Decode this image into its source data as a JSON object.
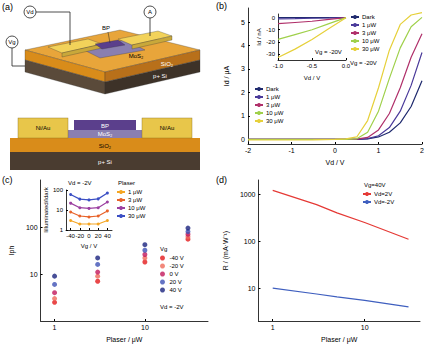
{
  "diagram": {
    "panel_label": "(a)",
    "device_3d": {
      "drain_source": "Vd",
      "ammeter": "A",
      "gate_source": "Vg",
      "top_flake": "BP",
      "bottom_flake": "MoS₂",
      "oxide": "SiO₂",
      "substrate": "p+ Si"
    },
    "cross_section": {
      "top_flake": "BP",
      "left_contact": "Ni/Au",
      "right_contact": "Ni/Au",
      "bottom_flake": "MoS₂",
      "oxide": "SiO₂",
      "substrate": "p+ Si"
    }
  },
  "chart_data": [
    {
      "type": "line",
      "title": "(b)",
      "x_label": "Vd / V",
      "y_label": "Id / μA",
      "annotations": [
        "Vg = -20V"
      ],
      "x": [
        -2,
        -1.5,
        -1,
        -0.5,
        0,
        0.25,
        0.5,
        0.75,
        1,
        1.25,
        1.5,
        1.75,
        2
      ],
      "xlim": [
        -2,
        2
      ],
      "xticks": [
        -2,
        -1,
        0,
        1,
        2
      ],
      "ylim": [
        -0.2,
        5.6
      ],
      "yticks": [
        0,
        1,
        2,
        3,
        4,
        5
      ],
      "grid": false,
      "legend": "left",
      "line_style": "solid",
      "series": [
        {
          "name": "Dark",
          "color": "#1f2a6e",
          "values": [
            0,
            0,
            0,
            0,
            0,
            0,
            0,
            0.02,
            0.1,
            0.3,
            0.7,
            1.4,
            2.5
          ]
        },
        {
          "name": "1 μW",
          "color": "#4a3a9a",
          "values": [
            0,
            0,
            0,
            0,
            0,
            0,
            0,
            0.03,
            0.15,
            0.5,
            1.2,
            2.3,
            3.7
          ]
        },
        {
          "name": "3 μW",
          "color": "#b0306a",
          "values": [
            0,
            0,
            0,
            0,
            0,
            0,
            0.01,
            0.08,
            0.4,
            1.1,
            2.2,
            3.5,
            4.5
          ]
        },
        {
          "name": "10 μW",
          "color": "#9fd04a",
          "values": [
            0,
            0,
            0,
            0,
            0,
            0,
            0.02,
            0.3,
            1.2,
            2.6,
            3.9,
            4.8,
            5.2
          ]
        },
        {
          "name": "30 μW",
          "color": "#e6d03a",
          "values": [
            -0.03,
            -0.03,
            -0.03,
            -0.02,
            0,
            0.02,
            0.1,
            0.8,
            2.2,
            3.8,
            4.9,
            5.3,
            5.4
          ]
        }
      ]
    },
    {
      "type": "line",
      "x_label": "Vd / V",
      "y_label": "Id / nA",
      "annotations": [
        "Vg = -20V"
      ],
      "x": [
        -1,
        -0.75,
        -0.5,
        -0.25,
        0
      ],
      "xlim": [
        -1,
        0
      ],
      "xticks": [
        {
          "value": -1,
          "label": "-1.0"
        },
        {
          "value": -0.5,
          "label": "-0.5"
        },
        {
          "value": 0,
          "label": "0.0"
        }
      ],
      "ylim": [
        -35,
        3
      ],
      "yticks": [
        -30,
        -20,
        -10,
        0
      ],
      "grid": false,
      "legend": "right",
      "line_style": "solid",
      "series": [
        {
          "name": "Dark",
          "color": "#1f2a6e",
          "values": [
            0,
            0,
            0,
            0,
            0
          ]
        },
        {
          "name": "1 μW",
          "color": "#4a3a9a",
          "values": [
            -1,
            -0.8,
            -0.5,
            -0.3,
            0
          ]
        },
        {
          "name": "3 μW",
          "color": "#b0306a",
          "values": [
            -5,
            -4,
            -3,
            -1.5,
            0
          ]
        },
        {
          "name": "10 μW",
          "color": "#9fd04a",
          "values": [
            -18,
            -14,
            -10,
            -5,
            0
          ]
        },
        {
          "name": "30 μW",
          "color": "#e6d03a",
          "values": [
            -33,
            -26,
            -18,
            -9,
            0
          ]
        }
      ]
    },
    {
      "type": "scatter",
      "title": "(c)",
      "x_label": "Plaser / μW",
      "y_label": "Iph",
      "annotations": [
        "Vd = -2V"
      ],
      "legend_title": "Vg",
      "x": [
        1,
        3,
        10,
        30
      ],
      "xlim": [
        0.7,
        50
      ],
      "xticks": [
        1,
        10
      ],
      "ylim": [
        1,
        1000
      ],
      "yticks": [
        10,
        100
      ],
      "log": true,
      "grid": false,
      "legend": "right",
      "marker": "circle",
      "series": [
        {
          "name": "-40 V",
          "color": "#e41a1c",
          "values": [
            2.5,
            7,
            18,
            55
          ]
        },
        {
          "name": "-20 V",
          "color": "#ef6a5a",
          "values": [
            3,
            9,
            22,
            62
          ]
        },
        {
          "name": "0 V",
          "color": "#c2185b",
          "values": [
            4,
            11,
            26,
            70
          ]
        },
        {
          "name": "20 V",
          "color": "#3f51b5",
          "values": [
            6,
            16,
            32,
            80
          ]
        },
        {
          "name": "40 V",
          "color": "#1a237e",
          "values": [
            9,
            22,
            42,
            95
          ]
        }
      ]
    },
    {
      "type": "line",
      "x_label": "Vg / V",
      "y_label": "Iilluminated/Idark",
      "annotations": [
        "Vd = -2V"
      ],
      "legend_title": "Plaser",
      "x": [
        -40,
        -20,
        0,
        20,
        40
      ],
      "xlim": [
        -50,
        50
      ],
      "xticks": [
        -40,
        -20,
        0,
        20,
        40
      ],
      "ylim": [
        1,
        100
      ],
      "yticks": [
        1,
        10,
        100
      ],
      "log": "y",
      "grid": false,
      "legend": "right",
      "marker": "circle",
      "line_style": "solid",
      "series": [
        {
          "name": "1 μW",
          "color": "#f5a623",
          "values": [
            3,
            2,
            2,
            2,
            3
          ]
        },
        {
          "name": "3 μW",
          "color": "#e8632a",
          "values": [
            8,
            5,
            4.5,
            5,
            9
          ]
        },
        {
          "name": "10 μW",
          "color": "#9b3fa0",
          "values": [
            22,
            13,
            12,
            13,
            25
          ]
        },
        {
          "name": "30 μW",
          "color": "#3b4fc4",
          "values": [
            60,
            35,
            32,
            36,
            70
          ]
        }
      ]
    },
    {
      "type": "line",
      "title": "(d)",
      "x_label": "Plaser / μW",
      "y_label": "R / (mA·W⁻¹)",
      "legend_title": "Vg=40V",
      "x": [
        1,
        3,
        5,
        10,
        30
      ],
      "xlim": [
        0.7,
        40
      ],
      "xticks": [
        1,
        10
      ],
      "ylim": [
        2,
        2000
      ],
      "yticks": [
        10,
        100,
        1000
      ],
      "log": true,
      "grid": false,
      "legend": "upper right",
      "line_style": "solid",
      "series": [
        {
          "name": "Vd=2V",
          "color": "#e53935",
          "values": [
            1200,
            600,
            400,
            250,
            110
          ]
        },
        {
          "name": "Vd=-2V",
          "color": "#3f5fbf",
          "values": [
            10,
            7.5,
            6.5,
            5.5,
            4
          ]
        }
      ]
    }
  ]
}
